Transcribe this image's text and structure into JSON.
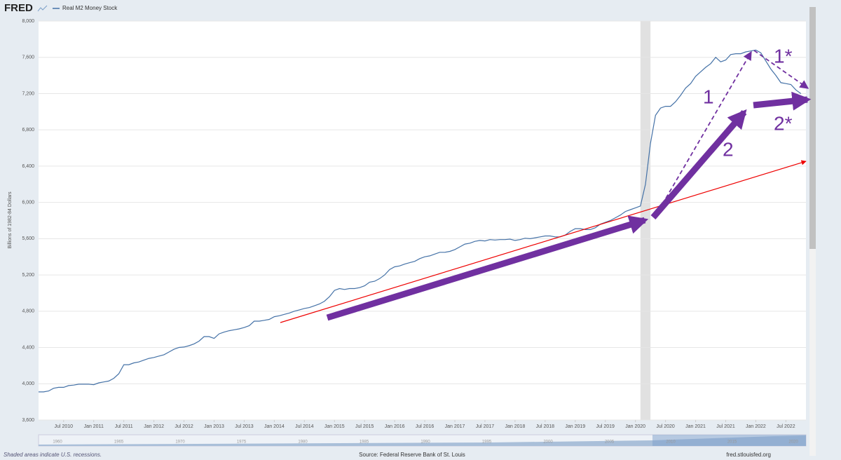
{
  "chart_data": {
    "type": "line",
    "brand": "FRED",
    "y_label": "Billions of 1982-84 Dollars",
    "footnote": "Shaded areas indicate U.S. recessions.",
    "source": "Source: Federal Reserve Bank of St. Louis",
    "site": "fred.stlouisfed.org",
    "grid": true,
    "x": [
      "2010-02",
      "2010-03",
      "2010-04",
      "2010-05",
      "2010-06",
      "2010-07",
      "2010-08",
      "2010-09",
      "2010-10",
      "2010-11",
      "2010-12",
      "2011-01",
      "2011-02",
      "2011-03",
      "2011-04",
      "2011-05",
      "2011-06",
      "2011-07",
      "2011-08",
      "2011-09",
      "2011-10",
      "2011-11",
      "2011-12",
      "2012-01",
      "2012-02",
      "2012-03",
      "2012-04",
      "2012-05",
      "2012-06",
      "2012-07",
      "2012-08",
      "2012-09",
      "2012-10",
      "2012-11",
      "2012-12",
      "2013-01",
      "2013-02",
      "2013-03",
      "2013-04",
      "2013-05",
      "2013-06",
      "2013-07",
      "2013-08",
      "2013-09",
      "2013-10",
      "2013-11",
      "2013-12",
      "2014-01",
      "2014-02",
      "2014-03",
      "2014-04",
      "2014-05",
      "2014-06",
      "2014-07",
      "2014-08",
      "2014-09",
      "2014-10",
      "2014-11",
      "2014-12",
      "2015-01",
      "2015-02",
      "2015-03",
      "2015-04",
      "2015-05",
      "2015-06",
      "2015-07",
      "2015-08",
      "2015-09",
      "2015-10",
      "2015-11",
      "2015-12",
      "2016-01",
      "2016-02",
      "2016-03",
      "2016-04",
      "2016-05",
      "2016-06",
      "2016-07",
      "2016-08",
      "2016-09",
      "2016-10",
      "2016-11",
      "2016-12",
      "2017-01",
      "2017-02",
      "2017-03",
      "2017-04",
      "2017-05",
      "2017-06",
      "2017-07",
      "2017-08",
      "2017-09",
      "2017-10",
      "2017-11",
      "2017-12",
      "2018-01",
      "2018-02",
      "2018-03",
      "2018-04",
      "2018-05",
      "2018-06",
      "2018-07",
      "2018-08",
      "2018-09",
      "2018-10",
      "2018-11",
      "2018-12",
      "2019-01",
      "2019-02",
      "2019-03",
      "2019-04",
      "2019-05",
      "2019-06",
      "2019-07",
      "2019-08",
      "2019-09",
      "2019-10",
      "2019-11",
      "2019-12",
      "2020-01",
      "2020-02",
      "2020-03",
      "2020-04",
      "2020-05",
      "2020-06",
      "2020-07",
      "2020-08",
      "2020-09",
      "2020-10",
      "2020-11",
      "2020-12",
      "2021-01",
      "2021-02",
      "2021-03",
      "2021-04",
      "2021-05",
      "2021-06",
      "2021-07",
      "2021-08",
      "2021-09",
      "2021-10",
      "2021-11",
      "2021-12",
      "2022-01",
      "2022-02",
      "2022-03",
      "2022-04",
      "2022-05",
      "2022-06",
      "2022-07",
      "2022-08",
      "2022-09",
      "2022-10"
    ],
    "series": [
      {
        "name": "Real M2 Money Stock",
        "color": "#4572a7",
        "values": [
          3910,
          3910,
          3920,
          3950,
          3960,
          3960,
          3980,
          3985,
          3995,
          3995,
          3995,
          3990,
          4010,
          4020,
          4030,
          4060,
          4110,
          4210,
          4210,
          4230,
          4240,
          4260,
          4280,
          4290,
          4305,
          4320,
          4350,
          4380,
          4400,
          4405,
          4420,
          4440,
          4470,
          4520,
          4520,
          4500,
          4550,
          4570,
          4585,
          4595,
          4605,
          4620,
          4640,
          4690,
          4690,
          4700,
          4710,
          4740,
          4750,
          4765,
          4780,
          4800,
          4815,
          4830,
          4840,
          4860,
          4880,
          4910,
          4960,
          5030,
          5050,
          5040,
          5050,
          5050,
          5060,
          5080,
          5120,
          5130,
          5160,
          5200,
          5260,
          5290,
          5300,
          5320,
          5335,
          5350,
          5380,
          5400,
          5410,
          5430,
          5450,
          5450,
          5460,
          5480,
          5510,
          5540,
          5550,
          5570,
          5580,
          5575,
          5590,
          5585,
          5590,
          5590,
          5595,
          5580,
          5590,
          5605,
          5600,
          5610,
          5620,
          5630,
          5630,
          5620,
          5620,
          5640,
          5680,
          5710,
          5710,
          5700,
          5700,
          5720,
          5760,
          5780,
          5800,
          5830,
          5860,
          5900,
          5920,
          5940,
          5960,
          6200,
          6650,
          6960,
          7040,
          7060,
          7060,
          7110,
          7180,
          7260,
          7310,
          7390,
          7440,
          7490,
          7530,
          7600,
          7550,
          7570,
          7630,
          7640,
          7640,
          7660,
          7670,
          7680,
          7650,
          7560,
          7470,
          7400,
          7320,
          7310,
          7300,
          7240,
          7200
        ]
      }
    ],
    "recessions": [
      {
        "start": "2020-02",
        "end": "2020-04"
      }
    ],
    "xlim": [
      "2010-02",
      "2022-11"
    ],
    "xticks": [
      {
        "value": "2010-07",
        "label": "Jul 2010"
      },
      {
        "value": "2011-01",
        "label": "Jan 2011"
      },
      {
        "value": "2011-07",
        "label": "Jul 2011"
      },
      {
        "value": "2012-01",
        "label": "Jan 2012"
      },
      {
        "value": "2012-07",
        "label": "Jul 2012"
      },
      {
        "value": "2013-01",
        "label": "Jan 2013"
      },
      {
        "value": "2013-07",
        "label": "Jul 2013"
      },
      {
        "value": "2014-01",
        "label": "Jan 2014"
      },
      {
        "value": "2014-07",
        "label": "Jul 2014"
      },
      {
        "value": "2015-01",
        "label": "Jan 2015"
      },
      {
        "value": "2015-07",
        "label": "Jul 2015"
      },
      {
        "value": "2016-01",
        "label": "Jan 2016"
      },
      {
        "value": "2016-07",
        "label": "Jul 2016"
      },
      {
        "value": "2017-01",
        "label": "Jan 2017"
      },
      {
        "value": "2017-07",
        "label": "Jul 2017"
      },
      {
        "value": "2018-01",
        "label": "Jan 2018"
      },
      {
        "value": "2018-07",
        "label": "Jul 2018"
      },
      {
        "value": "2019-01",
        "label": "Jan 2019"
      },
      {
        "value": "2019-07",
        "label": "Jul 2019"
      },
      {
        "value": "2020-01",
        "label": "Jan 2020"
      },
      {
        "value": "2020-07",
        "label": "Jul 2020"
      },
      {
        "value": "2021-01",
        "label": "Jan 2021"
      },
      {
        "value": "2021-07",
        "label": "Jul 2021"
      },
      {
        "value": "2022-01",
        "label": "Jan 2022"
      },
      {
        "value": "2022-07",
        "label": "Jul 2022"
      }
    ],
    "ylim": [
      3600,
      8000
    ],
    "yticks": [
      {
        "value": 3600,
        "label": "3,600"
      },
      {
        "value": 4000,
        "label": "4,000"
      },
      {
        "value": 4400,
        "label": "4,400"
      },
      {
        "value": 4800,
        "label": "4,800"
      },
      {
        "value": 5200,
        "label": "5,200"
      },
      {
        "value": 5600,
        "label": "5,600"
      },
      {
        "value": 6000,
        "label": "6,000"
      },
      {
        "value": 6400,
        "label": "6,400"
      },
      {
        "value": 6800,
        "label": "6,800"
      },
      {
        "value": 7200,
        "label": "7,200"
      },
      {
        "value": 7600,
        "label": "7,600"
      },
      {
        "value": 8000,
        "label": "8,000"
      }
    ],
    "navigator_labels": [
      "1960",
      "1965",
      "1970",
      "1975",
      "1980",
      "1985",
      "1990",
      "1995",
      "2000",
      "2005",
      "2010",
      "2015",
      "2020"
    ],
    "annotations": [
      "1",
      "2",
      "1*",
      "2*"
    ]
  }
}
